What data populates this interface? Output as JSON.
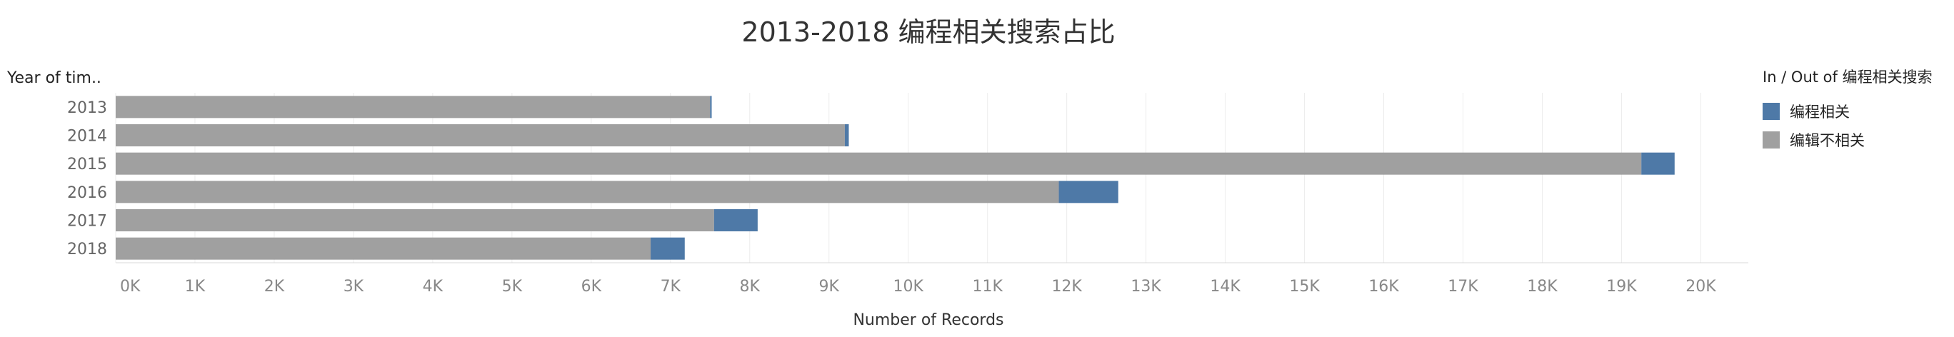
{
  "chart_data": {
    "type": "bar",
    "orientation": "horizontal",
    "stacked": true,
    "title": "2013-2018 编程相关搜索占比",
    "row_header": "Year of tim..",
    "xlabel": "Number of Records",
    "categories": [
      "2013",
      "2014",
      "2015",
      "2016",
      "2017",
      "2018"
    ],
    "series": [
      {
        "name": "编辑不相关",
        "color": "#a0a0a0",
        "values": [
          7500,
          9200,
          19250,
          11900,
          7550,
          6750
        ]
      },
      {
        "name": "编程相关",
        "color": "#4e79a7",
        "values": [
          20,
          50,
          420,
          750,
          550,
          430
        ]
      }
    ],
    "xlim": [
      0,
      20600
    ],
    "xticks": [
      "0K",
      "1K",
      "2K",
      "3K",
      "4K",
      "5K",
      "6K",
      "7K",
      "8K",
      "9K",
      "10K",
      "11K",
      "12K",
      "13K",
      "14K",
      "15K",
      "16K",
      "17K",
      "18K",
      "19K",
      "20K"
    ],
    "grid": "vertical",
    "legend": {
      "title": "In / Out of 编程相关搜索",
      "placement": "right",
      "items": [
        {
          "label": "编程相关",
          "color": "#4e79a7"
        },
        {
          "label": "编辑不相关",
          "color": "#a0a0a0"
        }
      ]
    }
  }
}
